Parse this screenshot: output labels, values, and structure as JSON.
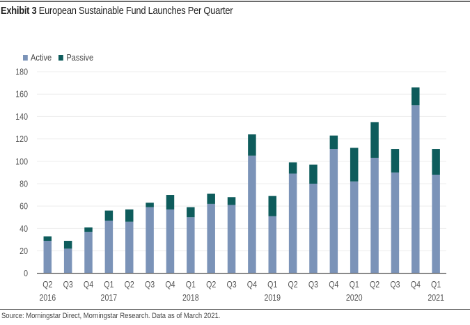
{
  "header": {
    "exhibit_label": "Exhibit 3",
    "title_text": "European Sustainable Fund Launches Per Quarter"
  },
  "footer": {
    "source": "Source: Morningstar Direct, Morningstar Research. Data as of March 2021."
  },
  "colors": {
    "active": "#7b93b8",
    "passive": "#0e5c5c",
    "grid": "#ececec",
    "axis": "#555555"
  },
  "chart_data": {
    "type": "bar",
    "stacked": true,
    "title": "European Sustainable Fund Launches Per Quarter",
    "xlabel": "",
    "ylabel": "",
    "ylim": [
      0,
      180
    ],
    "yticks": [
      0,
      20,
      40,
      60,
      80,
      100,
      120,
      140,
      160,
      180
    ],
    "grid": true,
    "legend_position": "top-left",
    "categories": [
      "Q2 2016",
      "Q3 2016",
      "Q4 2016",
      "Q1 2017",
      "Q2 2017",
      "Q3 2017",
      "Q4 2017",
      "Q1 2018",
      "Q2 2018",
      "Q3 2018",
      "Q4 2018",
      "Q1 2019",
      "Q2 2019",
      "Q3 2019",
      "Q4 2019",
      "Q1 2020",
      "Q2 2020",
      "Q3 2020",
      "Q4 2020",
      "Q1 2021"
    ],
    "tick_labels": [
      {
        "q": "Q2",
        "year": "2016"
      },
      {
        "q": "Q3",
        "year": ""
      },
      {
        "q": "Q4",
        "year": ""
      },
      {
        "q": "Q1",
        "year": "2017"
      },
      {
        "q": "Q2",
        "year": ""
      },
      {
        "q": "Q3",
        "year": ""
      },
      {
        "q": "Q4",
        "year": ""
      },
      {
        "q": "Q1",
        "year": "2018"
      },
      {
        "q": "Q2",
        "year": ""
      },
      {
        "q": "Q3",
        "year": ""
      },
      {
        "q": "Q4",
        "year": ""
      },
      {
        "q": "Q1",
        "year": "2019"
      },
      {
        "q": "Q2",
        "year": ""
      },
      {
        "q": "Q3",
        "year": ""
      },
      {
        "q": "Q4",
        "year": ""
      },
      {
        "q": "Q1",
        "year": "2020"
      },
      {
        "q": "Q2",
        "year": ""
      },
      {
        "q": "Q3",
        "year": ""
      },
      {
        "q": "Q4",
        "year": ""
      },
      {
        "q": "Q1",
        "year": "2021"
      }
    ],
    "series": [
      {
        "name": "Active",
        "values": [
          29,
          22,
          37,
          47,
          46,
          59,
          57,
          50,
          62,
          61,
          105,
          51,
          89,
          80,
          111,
          82,
          103,
          90,
          150,
          88
        ]
      },
      {
        "name": "Passive",
        "values": [
          4,
          7,
          4,
          9,
          11,
          4,
          13,
          9,
          9,
          7,
          19,
          18,
          10,
          17,
          12,
          30,
          32,
          21,
          16,
          23
        ]
      }
    ]
  }
}
